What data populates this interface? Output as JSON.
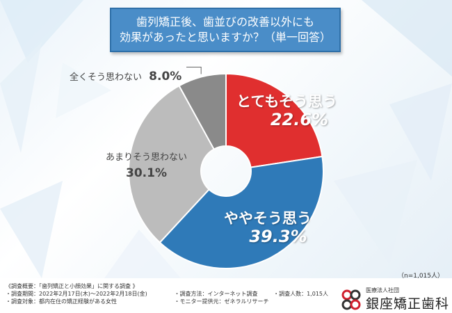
{
  "title": {
    "line1": "歯列矯正後、歯並びの改善以外にも",
    "line2": "効果があったと思いますか？（単一回答）"
  },
  "chart_data": {
    "type": "pie",
    "donut": true,
    "title": "歯列矯正後、歯並びの改善以外にも効果があったと思いますか？（単一回答）",
    "categories": [
      "とてもそう思う",
      "ややそう思う",
      "あまりそう思わない",
      "全くそう思わない"
    ],
    "values": [
      22.6,
      39.3,
      30.1,
      8.0
    ],
    "value_labels": [
      "22.6%",
      "39.3%",
      "30.1%",
      "8.0%"
    ],
    "colors": [
      "#e02f2f",
      "#2f7ab8",
      "#bcbcbc",
      "#8a8a8a"
    ],
    "start_angle_deg": 0,
    "direction": "clockwise"
  },
  "sample_note": "（n=1,015人）",
  "footer": {
    "overview": "《調査概要：「歯列矯正と小顔効果」に関する調査 》",
    "period": "・調査期間：2022年2月17日(木)〜2022年2月18日(金)",
    "method": "・調査方法：インターネット調査",
    "count": "・調査人数：1,015人",
    "target": "・調査対象：都内在住の矯正経験がある女性",
    "provider": "・モニター提供元：ゼネラルリサーチ"
  },
  "logo": {
    "sub": "医療法人社団",
    "name": "銀座矯正歯科"
  }
}
